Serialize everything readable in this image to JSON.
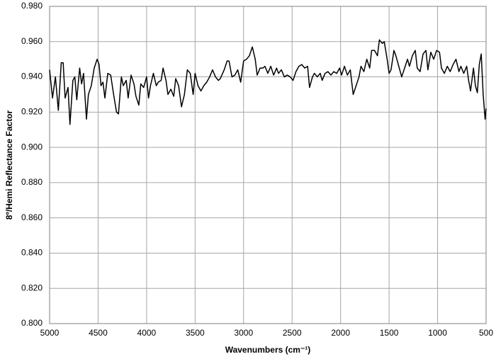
{
  "chart_data": {
    "type": "line",
    "xlabel": "Wavenumbers (cm⁻¹)",
    "ylabel": "8º/Hemi Reflectance Factor",
    "color": "#000000",
    "grid": true,
    "xlim": [
      5000,
      500
    ],
    "xticks": [
      5000,
      4500,
      4000,
      3500,
      3000,
      2500,
      2000,
      1500,
      1000,
      500
    ],
    "ylim": [
      0.8,
      0.98
    ],
    "yticks": [
      {
        "value": 0.8,
        "label": "0.800"
      },
      {
        "value": 0.82,
        "label": "0.820"
      },
      {
        "value": 0.84,
        "label": "0.840"
      },
      {
        "value": 0.86,
        "label": "0.860"
      },
      {
        "value": 0.88,
        "label": "0.880"
      },
      {
        "value": 0.9,
        "label": "0.900"
      },
      {
        "value": 0.92,
        "label": "0.920"
      },
      {
        "value": 0.94,
        "label": "0.940"
      },
      {
        "value": 0.96,
        "label": "0.960"
      },
      {
        "value": 0.98,
        "label": "0.980"
      }
    ],
    "x": [
      5000,
      4970,
      4940,
      4910,
      4880,
      4860,
      4840,
      4810,
      4790,
      4760,
      4740,
      4720,
      4690,
      4670,
      4650,
      4620,
      4600,
      4570,
      4540,
      4510,
      4490,
      4470,
      4450,
      4430,
      4400,
      4370,
      4340,
      4310,
      4290,
      4260,
      4240,
      4210,
      4190,
      4160,
      4130,
      4110,
      4080,
      4060,
      4030,
      4000,
      3980,
      3960,
      3930,
      3900,
      3880,
      3850,
      3830,
      3800,
      3780,
      3750,
      3720,
      3700,
      3670,
      3640,
      3610,
      3580,
      3550,
      3520,
      3500,
      3470,
      3440,
      3410,
      3380,
      3350,
      3320,
      3290,
      3260,
      3240,
      3200,
      3170,
      3150,
      3120,
      3090,
      3060,
      3030,
      3000,
      2970,
      2940,
      2910,
      2880,
      2860,
      2830,
      2800,
      2780,
      2750,
      2720,
      2690,
      2660,
      2640,
      2610,
      2580,
      2550,
      2520,
      2490,
      2460,
      2430,
      2400,
      2370,
      2340,
      2320,
      2290,
      2270,
      2240,
      2210,
      2190,
      2160,
      2130,
      2100,
      2070,
      2040,
      2010,
      1990,
      1960,
      1930,
      1900,
      1870,
      1840,
      1810,
      1790,
      1760,
      1730,
      1700,
      1680,
      1650,
      1620,
      1600,
      1570,
      1550,
      1520,
      1500,
      1480,
      1450,
      1430,
      1400,
      1370,
      1340,
      1310,
      1290,
      1260,
      1230,
      1210,
      1180,
      1150,
      1120,
      1100,
      1070,
      1040,
      1010,
      980,
      960,
      930,
      900,
      870,
      840,
      810,
      780,
      760,
      730,
      700,
      680,
      660,
      630,
      610,
      590,
      570,
      550,
      530,
      510,
      500
    ],
    "values": [
      0.944,
      0.928,
      0.94,
      0.921,
      0.948,
      0.948,
      0.928,
      0.934,
      0.913,
      0.938,
      0.94,
      0.927,
      0.945,
      0.936,
      0.942,
      0.916,
      0.93,
      0.935,
      0.945,
      0.95,
      0.947,
      0.935,
      0.937,
      0.928,
      0.942,
      0.941,
      0.93,
      0.92,
      0.919,
      0.94,
      0.935,
      0.938,
      0.928,
      0.941,
      0.936,
      0.929,
      0.924,
      0.936,
      0.934,
      0.94,
      0.928,
      0.935,
      0.942,
      0.935,
      0.937,
      0.938,
      0.945,
      0.938,
      0.93,
      0.933,
      0.929,
      0.939,
      0.935,
      0.923,
      0.93,
      0.944,
      0.942,
      0.93,
      0.942,
      0.935,
      0.932,
      0.935,
      0.937,
      0.94,
      0.944,
      0.94,
      0.938,
      0.939,
      0.944,
      0.949,
      0.949,
      0.94,
      0.941,
      0.944,
      0.937,
      0.949,
      0.95,
      0.952,
      0.957,
      0.95,
      0.941,
      0.945,
      0.945,
      0.946,
      0.942,
      0.946,
      0.941,
      0.945,
      0.942,
      0.944,
      0.94,
      0.941,
      0.94,
      0.938,
      0.943,
      0.946,
      0.947,
      0.945,
      0.946,
      0.934,
      0.94,
      0.942,
      0.94,
      0.942,
      0.938,
      0.942,
      0.943,
      0.941,
      0.943,
      0.942,
      0.945,
      0.941,
      0.946,
      0.941,
      0.944,
      0.93,
      0.935,
      0.94,
      0.946,
      0.943,
      0.95,
      0.945,
      0.955,
      0.955,
      0.952,
      0.961,
      0.959,
      0.96,
      0.95,
      0.942,
      0.944,
      0.955,
      0.952,
      0.946,
      0.94,
      0.945,
      0.95,
      0.946,
      0.952,
      0.955,
      0.945,
      0.943,
      0.953,
      0.955,
      0.944,
      0.954,
      0.95,
      0.955,
      0.954,
      0.945,
      0.942,
      0.946,
      0.943,
      0.947,
      0.95,
      0.943,
      0.946,
      0.942,
      0.946,
      0.938,
      0.932,
      0.945,
      0.935,
      0.931,
      0.947,
      0.953,
      0.93,
      0.916,
      0.922
    ]
  }
}
